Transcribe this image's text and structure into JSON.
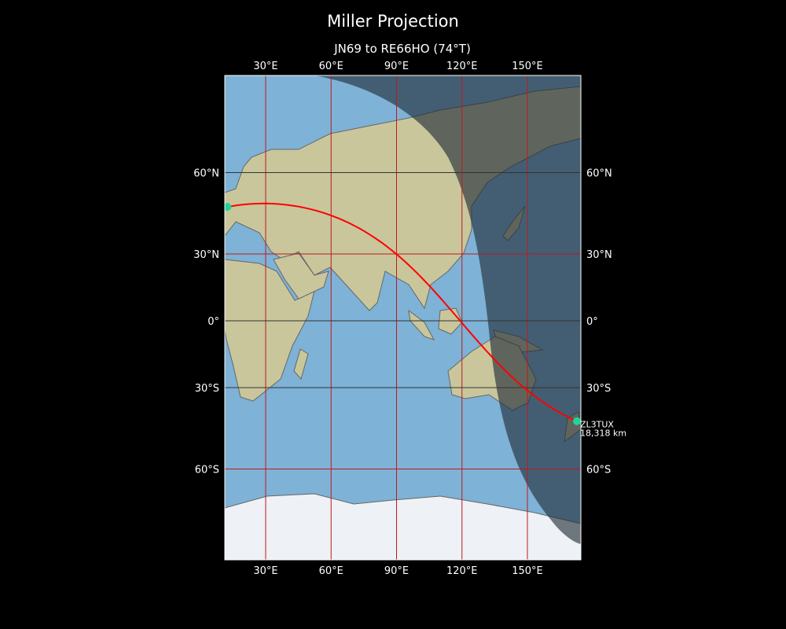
{
  "figure": {
    "title": "Miller Projection",
    "subtitle": "JN69 to RE66HO (74°T)"
  },
  "map": {
    "projection": "Miller",
    "extent": {
      "lon_min": 11.2,
      "lon_max": 174.5,
      "lat_min": -81,
      "lat_max": 83.5
    },
    "lon_ticks": [
      {
        "lon": 30,
        "label": "30°E"
      },
      {
        "lon": 60,
        "label": "60°E"
      },
      {
        "lon": 90,
        "label": "90°E"
      },
      {
        "lon": 120,
        "label": "120°E"
      },
      {
        "lon": 150,
        "label": "150°E"
      }
    ],
    "lat_ticks": [
      {
        "lat": 60,
        "label": "60°N"
      },
      {
        "lat": 30,
        "label": "30°N"
      },
      {
        "lat": 0,
        "label": "0°"
      },
      {
        "lat": -30,
        "label": "30°S"
      },
      {
        "lat": -60,
        "label": "60°S"
      }
    ],
    "colors": {
      "ocean": "#7eb2d6",
      "land": "#c9c69c",
      "night": "#1e2a36",
      "path": "#ff0000",
      "marker": "#1fd39a",
      "grid_red": "#c0181b",
      "grid_dark": "#333333"
    },
    "start": {
      "locator": "JN69",
      "lat": 48.5,
      "lon": 12.5
    },
    "end": {
      "locator": "RE66HO",
      "lat": -43.5,
      "lon": 172.7,
      "callsign": "ZL3TUX",
      "distance": "18,318 km"
    },
    "bearing": "74°T"
  }
}
